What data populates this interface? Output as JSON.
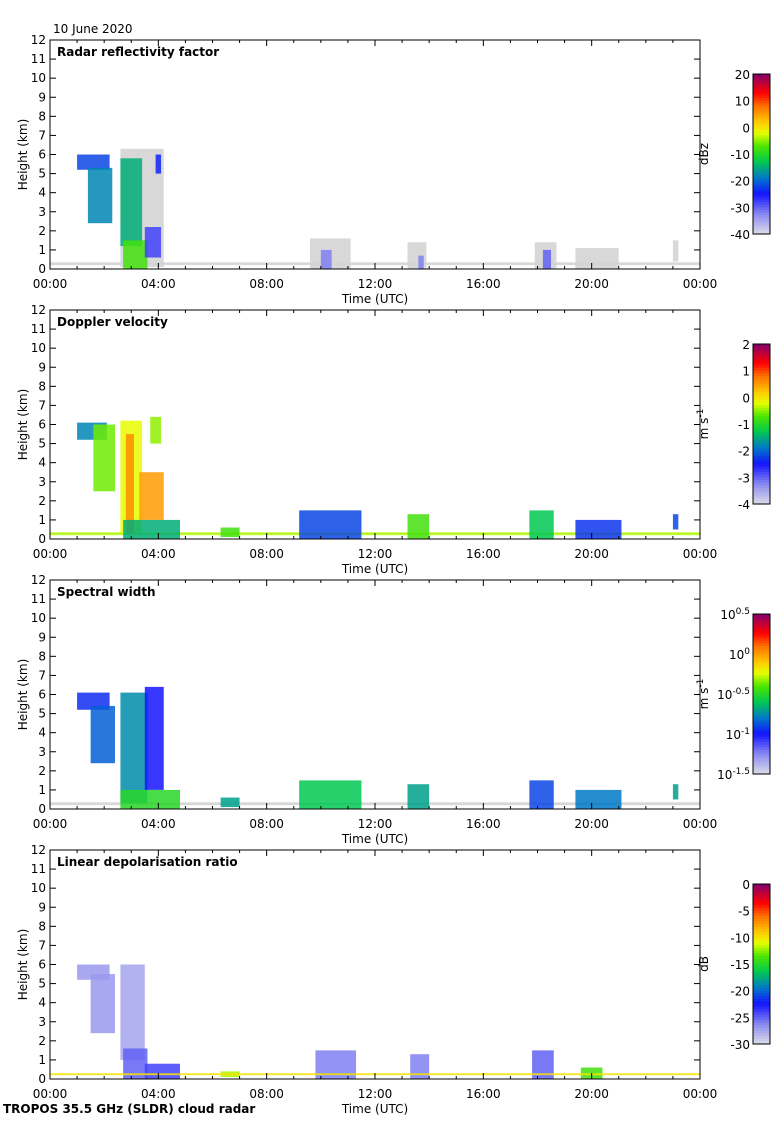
{
  "date_label": "10 June 2020",
  "footer": "TROPOS 35.5 GHz (SLDR) cloud radar",
  "chart_data": [
    {
      "type": "heatmap",
      "title": "Radar reflectivity factor",
      "xlabel": "Time (UTC)",
      "ylabel": "Height (km)",
      "xlim": [
        0,
        24
      ],
      "ylim": [
        0,
        12
      ],
      "x_tick_labels": [
        "00:00",
        "04:00",
        "08:00",
        "12:00",
        "16:00",
        "20:00",
        "00:00"
      ],
      "y_tick_labels": [
        "0",
        "1",
        "2",
        "3",
        "4",
        "5",
        "6",
        "7",
        "8",
        "9",
        "10",
        "11",
        "12"
      ],
      "colorbar": {
        "unit": "dBz",
        "unit_exp": "",
        "range": [
          -40,
          20
        ],
        "tick_labels": [
          "20",
          "10",
          "0",
          "-10",
          "-20",
          "-30",
          "-40"
        ],
        "tick_exps": [
          "",
          "",
          "",
          "",
          "",
          "",
          ""
        ]
      },
      "regions": [
        {
          "t0": 0.0,
          "t1": 24.0,
          "h0": 0.2,
          "h1": 0.35,
          "v": -40,
          "grey": true
        },
        {
          "t0": 2.6,
          "t1": 4.2,
          "h0": 0.1,
          "h1": 6.3,
          "v": -40,
          "grey": true
        },
        {
          "t0": 1.0,
          "t1": 2.2,
          "h0": 5.2,
          "h1": 6.0,
          "v": -22
        },
        {
          "t0": 1.4,
          "t1": 2.3,
          "h0": 2.4,
          "h1": 5.3,
          "v": -18
        },
        {
          "t0": 2.6,
          "t1": 3.4,
          "h0": 1.2,
          "h1": 5.8,
          "v": -15
        },
        {
          "t0": 2.7,
          "t1": 3.6,
          "h0": 0.0,
          "h1": 1.5,
          "v": -8
        },
        {
          "t0": 3.5,
          "t1": 4.1,
          "h0": 0.6,
          "h1": 2.2,
          "v": -28
        },
        {
          "t0": 3.9,
          "t1": 4.1,
          "h0": 5.0,
          "h1": 6.0,
          "v": -24
        },
        {
          "t0": 9.6,
          "t1": 11.1,
          "h0": 0.0,
          "h1": 1.6,
          "v": -40,
          "grey": true
        },
        {
          "t0": 10.0,
          "t1": 10.4,
          "h0": 0.0,
          "h1": 1.0,
          "v": -32
        },
        {
          "t0": 13.2,
          "t1": 13.9,
          "h0": 0.0,
          "h1": 1.4,
          "v": -40,
          "grey": true
        },
        {
          "t0": 13.6,
          "t1": 13.8,
          "h0": 0.0,
          "h1": 0.7,
          "v": -32
        },
        {
          "t0": 17.9,
          "t1": 18.7,
          "h0": 0.0,
          "h1": 1.4,
          "v": -40,
          "grey": true
        },
        {
          "t0": 18.2,
          "t1": 18.5,
          "h0": 0.0,
          "h1": 1.0,
          "v": -30
        },
        {
          "t0": 19.4,
          "t1": 21.0,
          "h0": 0.0,
          "h1": 1.1,
          "v": -40,
          "grey": true
        },
        {
          "t0": 23.0,
          "t1": 23.2,
          "h0": 0.4,
          "h1": 1.5,
          "v": -40,
          "grey": true
        }
      ]
    },
    {
      "type": "heatmap",
      "title": "Doppler velocity",
      "xlabel": "Time (UTC)",
      "ylabel": "Height (km)",
      "xlim": [
        0,
        24
      ],
      "ylim": [
        0,
        12
      ],
      "x_tick_labels": [
        "00:00",
        "04:00",
        "08:00",
        "12:00",
        "16:00",
        "20:00",
        "00:00"
      ],
      "y_tick_labels": [
        "0",
        "1",
        "2",
        "3",
        "4",
        "5",
        "6",
        "7",
        "8",
        "9",
        "10",
        "11",
        "12"
      ],
      "colorbar": {
        "unit": "m s",
        "unit_exp": "-1",
        "range": [
          -4,
          2
        ],
        "tick_labels": [
          "2",
          "1",
          "0",
          "-1",
          "-2",
          "-3",
          "-4"
        ],
        "tick_exps": [
          "",
          "",
          "",
          "",
          "",
          "",
          ""
        ]
      },
      "regions": [
        {
          "t0": 0.0,
          "t1": 24.0,
          "h0": 0.2,
          "h1": 0.35,
          "v": -0.4
        },
        {
          "t0": 1.0,
          "t1": 2.1,
          "h0": 5.2,
          "h1": 6.1,
          "v": -1.8
        },
        {
          "t0": 1.6,
          "t1": 2.4,
          "h0": 2.5,
          "h1": 6.0,
          "v": -0.6
        },
        {
          "t0": 2.6,
          "t1": 3.4,
          "h0": 0.3,
          "h1": 6.2,
          "v": -0.2
        },
        {
          "t0": 2.8,
          "t1": 3.1,
          "h0": 0.3,
          "h1": 5.5,
          "v": 0.6
        },
        {
          "t0": 3.3,
          "t1": 4.2,
          "h0": 1.0,
          "h1": 3.5,
          "v": 0.5
        },
        {
          "t0": 3.7,
          "t1": 4.1,
          "h0": 5.0,
          "h1": 6.4,
          "v": -0.5
        },
        {
          "t0": 2.7,
          "t1": 4.8,
          "h0": 0.0,
          "h1": 1.0,
          "v": -1.5
        },
        {
          "t0": 6.3,
          "t1": 7.0,
          "h0": 0.1,
          "h1": 0.6,
          "v": -0.8
        },
        {
          "t0": 9.2,
          "t1": 11.5,
          "h0": 0.0,
          "h1": 1.5,
          "v": -2.2
        },
        {
          "t0": 13.2,
          "t1": 14.0,
          "h0": 0.0,
          "h1": 1.3,
          "v": -0.8
        },
        {
          "t0": 17.7,
          "t1": 18.6,
          "h0": 0.0,
          "h1": 1.5,
          "v": -1.3
        },
        {
          "t0": 19.4,
          "t1": 21.1,
          "h0": 0.0,
          "h1": 1.0,
          "v": -2.3
        },
        {
          "t0": 23.0,
          "t1": 23.2,
          "h0": 0.5,
          "h1": 1.3,
          "v": -2.2
        }
      ]
    },
    {
      "type": "heatmap",
      "title": "Spectral width",
      "xlabel": "Time (UTC)",
      "ylabel": "Height (km)",
      "xlim": [
        0,
        24
      ],
      "ylim": [
        0,
        12
      ],
      "x_tick_labels": [
        "00:00",
        "04:00",
        "08:00",
        "12:00",
        "16:00",
        "20:00",
        "00:00"
      ],
      "y_tick_labels": [
        "0",
        "1",
        "2",
        "3",
        "4",
        "5",
        "6",
        "7",
        "8",
        "9",
        "10",
        "11",
        "12"
      ],
      "colorbar": {
        "unit": "m s",
        "unit_exp": "-1",
        "range": [
          -1.5,
          0.5
        ],
        "tick_labels": [
          "10",
          "10",
          "10",
          "10",
          "10"
        ],
        "tick_exps": [
          "0.5",
          "0",
          "-0.5",
          "-1",
          "-1.5"
        ]
      },
      "regions": [
        {
          "t0": 0.0,
          "t1": 24.0,
          "h0": 0.2,
          "h1": 0.35,
          "v": -1.5,
          "grey": true
        },
        {
          "t0": 1.0,
          "t1": 2.2,
          "h0": 5.2,
          "h1": 6.1,
          "v": -0.95
        },
        {
          "t0": 1.5,
          "t1": 2.4,
          "h0": 2.4,
          "h1": 5.4,
          "v": -0.85
        },
        {
          "t0": 2.6,
          "t1": 3.6,
          "h0": 0.3,
          "h1": 6.1,
          "v": -0.75
        },
        {
          "t0": 3.5,
          "t1": 4.2,
          "h0": 1.0,
          "h1": 6.4,
          "v": -1.0
        },
        {
          "t0": 2.6,
          "t1": 4.8,
          "h0": 0.0,
          "h1": 1.0,
          "v": -0.5
        },
        {
          "t0": 6.3,
          "t1": 7.0,
          "h0": 0.1,
          "h1": 0.6,
          "v": -0.7
        },
        {
          "t0": 9.2,
          "t1": 11.5,
          "h0": 0.0,
          "h1": 1.5,
          "v": -0.6
        },
        {
          "t0": 13.2,
          "t1": 14.0,
          "h0": 0.0,
          "h1": 1.3,
          "v": -0.7
        },
        {
          "t0": 17.7,
          "t1": 18.6,
          "h0": 0.0,
          "h1": 1.5,
          "v": -0.9
        },
        {
          "t0": 19.4,
          "t1": 21.1,
          "h0": 0.0,
          "h1": 1.0,
          "v": -0.8
        },
        {
          "t0": 23.0,
          "t1": 23.2,
          "h0": 0.5,
          "h1": 1.3,
          "v": -0.7
        }
      ]
    },
    {
      "type": "heatmap",
      "title": "Linear depolarisation ratio",
      "xlabel": "Time (UTC)",
      "ylabel": "Height (km)",
      "xlim": [
        0,
        24
      ],
      "ylim": [
        0,
        12
      ],
      "x_tick_labels": [
        "00:00",
        "04:00",
        "08:00",
        "12:00",
        "16:00",
        "20:00",
        "00:00"
      ],
      "y_tick_labels": [
        "0",
        "1",
        "2",
        "3",
        "4",
        "5",
        "6",
        "7",
        "8",
        "9",
        "10",
        "11",
        "12"
      ],
      "colorbar": {
        "unit": "dB",
        "unit_exp": "",
        "range": [
          -30,
          0
        ],
        "tick_labels": [
          "0",
          "-5",
          "-10",
          "-15",
          "-20",
          "-25",
          "-30"
        ],
        "tick_exps": [
          "",
          "",
          "",
          "",
          "",
          "",
          ""
        ]
      },
      "regions": [
        {
          "t0": 1.0,
          "t1": 2.2,
          "h0": 5.2,
          "h1": 6.0,
          "v": -27
        },
        {
          "t0": 1.5,
          "t1": 2.4,
          "h0": 2.4,
          "h1": 5.5,
          "v": -27
        },
        {
          "t0": 2.6,
          "t1": 3.5,
          "h0": 1.0,
          "h1": 6.0,
          "v": -27.5
        },
        {
          "t0": 2.7,
          "t1": 3.6,
          "h0": 0.0,
          "h1": 1.6,
          "v": -25
        },
        {
          "t0": 3.5,
          "t1": 4.8,
          "h0": 0.0,
          "h1": 0.8,
          "v": -24
        },
        {
          "t0": 6.3,
          "t1": 7.0,
          "h0": 0.1,
          "h1": 0.4,
          "v": -12
        },
        {
          "t0": 9.8,
          "t1": 11.3,
          "h0": 0.0,
          "h1": 1.5,
          "v": -26
        },
        {
          "t0": 13.3,
          "t1": 14.0,
          "h0": 0.0,
          "h1": 1.3,
          "v": -26
        },
        {
          "t0": 17.8,
          "t1": 18.6,
          "h0": 0.0,
          "h1": 1.5,
          "v": -25
        },
        {
          "t0": 19.6,
          "t1": 20.4,
          "h0": 0.0,
          "h1": 0.6,
          "v": -14
        },
        {
          "t0": 0.0,
          "t1": 24.0,
          "h0": 0.2,
          "h1": 0.3,
          "v": -10
        }
      ]
    }
  ]
}
